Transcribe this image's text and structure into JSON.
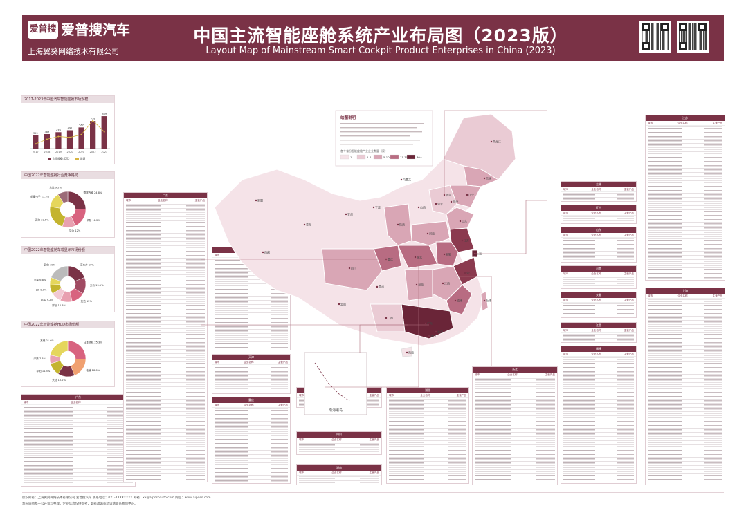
{
  "header": {
    "brand_badge": "爱普搜",
    "brand_name": "爱普搜汽车",
    "brand_sub": "上海翼葵网络技术有限公司",
    "title_cn": "中国主流智能座舱系统产业布局图（2023版）",
    "title_en": "Layout Map of Mainstream Smart Cockpit Product Enterprises in China (2023)"
  },
  "colors": {
    "accent": "#7a3246",
    "light": "#f1dde3",
    "mid": "#d9a6b5",
    "dark": "#8b3a4f"
  },
  "icons": {
    "qr_left": "qr-code-icon",
    "qr_right": "qr-code-icon"
  },
  "left_charts": {
    "bar_title": "2017-2023年中国汽车智能座舱市场规模",
    "bar_legend": [
      "市场规模(亿元)",
      "增速"
    ],
    "pie1_title": "中国2022年智能座舱行业竞争格局",
    "pie2_title": "中国2022年智能座舱车载显示市场份额",
    "pie3_title": "中国2022年智能座舱HUD市场份额"
  },
  "chart_data": [
    {
      "type": "bar",
      "categories": [
        "2017",
        "2018",
        "2019",
        "2020",
        "2021",
        "2022",
        "2023"
      ],
      "series": [
        {
          "name": "市场规模(亿元)",
          "values": [
            353,
            389,
            439,
            491,
            567,
            739,
            869
          ]
        }
      ],
      "line_series": [
        {
          "name": "增速",
          "values": [
            5,
            10,
            13,
            12,
            15,
            30,
            18
          ]
        }
      ],
      "title": "2017-2023年中国汽车智能座舱市场规模"
    },
    {
      "type": "pie",
      "title": "中国2022年智能座舱行业竞争格局",
      "labels": [
        "德赛西威",
        "华阳",
        "华为",
        "其他",
        "航盛电子",
        "东软"
      ],
      "values": [
        24.8,
        18.2,
        12.0,
        22.5,
        13.3,
        9.2
      ]
    },
    {
      "type": "pie",
      "title": "中国2022年智能座舱车载显示市场份额",
      "labels": [
        "京东方",
        "天马",
        "友达",
        "群创",
        "LGD",
        "JDI",
        "华星",
        "其他"
      ],
      "values": [
        19.0,
        15.1,
        12.0,
        10.8,
        9.2,
        8.1,
        6.8,
        19.0
      ]
    },
    {
      "type": "pie",
      "title": "中国2022年智能座舱HUD市场份额",
      "labels": [
        "日本精机",
        "电装",
        "大陆",
        "华阳",
        "泽景",
        "其他"
      ],
      "values": [
        25.3,
        18.6,
        15.2,
        11.5,
        7.8,
        21.6
      ]
    }
  ],
  "map": {
    "legend_title": "绘图说明",
    "legend_scale_title": "各个省份智能座舱产业企业数量（家）",
    "legend_bins": [
      "1",
      "2-4",
      "5-10",
      "11-30",
      "30+"
    ],
    "cities": [
      "黑龙江",
      "吉林",
      "辽宁",
      "北京",
      "天津",
      "河北",
      "山西",
      "山东",
      "河南",
      "江苏",
      "上海",
      "安徽",
      "湖北",
      "浙江",
      "江西",
      "湖南",
      "福建",
      "广东",
      "广西",
      "重庆",
      "四川",
      "陕西",
      "宁夏",
      "甘肃",
      "青海",
      "西藏",
      "新疆",
      "内蒙古",
      "贵州",
      "云南",
      "海南",
      "台湾",
      "香港",
      "澳门"
    ],
    "nanhai_label": "南海诸岛"
  },
  "tables": {
    "guangdong": "广东",
    "beijing": "北京",
    "jiangsu": "江苏",
    "zhejiang": "浙江",
    "shanghai": "上海",
    "anhui": "安徽",
    "chongqing": "重庆",
    "hubei": "湖北",
    "sichuan": "四川",
    "fujian": "福建",
    "shandong": "山东",
    "tianjin": "天津",
    "liaoning": "辽宁",
    "jilin": "吉林",
    "henan": "河南",
    "hunan": "湖南",
    "jiangxi": "江西",
    "shaanxi": "陕西",
    "col_city": "城市",
    "col_company": "企业名称",
    "col_product": "主营产品"
  },
  "footer": {
    "line1": "版权所有：上海翼葵网络技术有限公司 爱普搜汽车    联系电话：021-XXXXXXXX    邮箱：xx@aiposoauto.com    网址：www.aiposo.com",
    "line2": "本布局图基于公开资料整理，企业信息仅供参考，如有疏漏或错误请联系我们更正。"
  }
}
